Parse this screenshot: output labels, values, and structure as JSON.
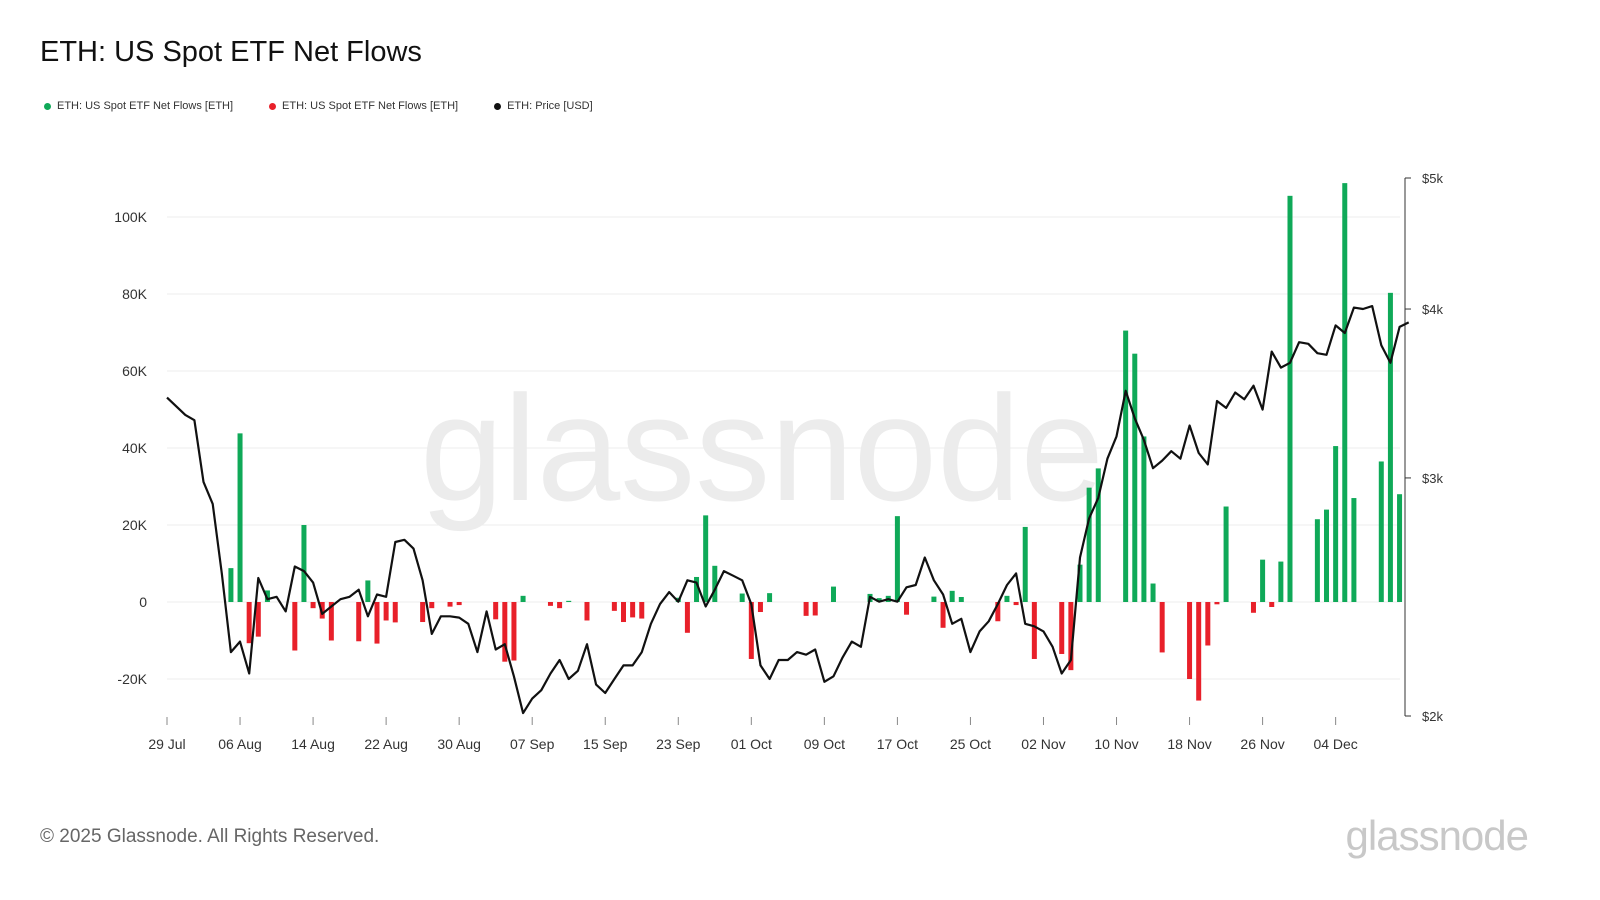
{
  "title": "ETH: US Spot ETF Net Flows",
  "legend": [
    {
      "label": "ETH: US Spot ETF Net Flows [ETH]",
      "color": "#0fa958"
    },
    {
      "label": "ETH: US Spot ETF Net Flows [ETH]",
      "color": "#e8202a"
    },
    {
      "label": "ETH: Price [USD]",
      "color": "#111111"
    }
  ],
  "footer": "© 2025 Glassnode. All Rights Reserved.",
  "brand": "glassnode",
  "watermark": "glassnode",
  "chart_data": {
    "type": "bar",
    "title": "ETH: US Spot ETF Net Flows",
    "x_ticks": [
      "29 Jul",
      "06 Aug",
      "14 Aug",
      "22 Aug",
      "30 Aug",
      "07 Sep",
      "15 Sep",
      "23 Sep",
      "01 Oct",
      "09 Oct",
      "17 Oct",
      "25 Oct",
      "02 Nov",
      "10 Nov",
      "18 Nov",
      "26 Nov",
      "04 Dec"
    ],
    "y_left_ticks": [
      "100K",
      "80K",
      "60K",
      "40K",
      "20K",
      "0",
      "-20K"
    ],
    "y_left_range": [
      -30000,
      110000
    ],
    "y_right_ticks": [
      "$5k",
      "$4k",
      "$3k",
      "$2k"
    ],
    "y_right_range": [
      2000,
      5000
    ],
    "y_right_scale": "log",
    "positive_color": "#0fa958",
    "negative_color": "#e8202a",
    "price_color": "#111111",
    "flows": [
      {
        "day": 7,
        "value": 8800
      },
      {
        "day": 8,
        "value": 43800
      },
      {
        "day": 9,
        "value": -10700
      },
      {
        "day": 10,
        "value": -9000
      },
      {
        "day": 11,
        "value": 3000
      },
      {
        "day": 14,
        "value": -12600
      },
      {
        "day": 15,
        "value": 20000
      },
      {
        "day": 16,
        "value": -1600
      },
      {
        "day": 17,
        "value": -4300
      },
      {
        "day": 18,
        "value": -10000
      },
      {
        "day": 21,
        "value": -10200
      },
      {
        "day": 22,
        "value": 5600
      },
      {
        "day": 23,
        "value": -10800
      },
      {
        "day": 24,
        "value": -4800
      },
      {
        "day": 25,
        "value": -5300
      },
      {
        "day": 28,
        "value": -5200
      },
      {
        "day": 29,
        "value": -1600
      },
      {
        "day": 31,
        "value": -1200
      },
      {
        "day": 32,
        "value": -800
      },
      {
        "day": 36,
        "value": -4500
      },
      {
        "day": 37,
        "value": -15500
      },
      {
        "day": 38,
        "value": -15200
      },
      {
        "day": 39,
        "value": 1600
      },
      {
        "day": 42,
        "value": -1000
      },
      {
        "day": 43,
        "value": -1600
      },
      {
        "day": 44,
        "value": 300
      },
      {
        "day": 46,
        "value": -4800
      },
      {
        "day": 49,
        "value": -2300
      },
      {
        "day": 50,
        "value": -5200
      },
      {
        "day": 51,
        "value": -4000
      },
      {
        "day": 52,
        "value": -4300
      },
      {
        "day": 56,
        "value": 1100
      },
      {
        "day": 57,
        "value": -8000
      },
      {
        "day": 58,
        "value": 6500
      },
      {
        "day": 59,
        "value": 22500
      },
      {
        "day": 60,
        "value": 9400
      },
      {
        "day": 63,
        "value": 2200
      },
      {
        "day": 64,
        "value": -14800
      },
      {
        "day": 65,
        "value": -2600
      },
      {
        "day": 66,
        "value": 2300
      },
      {
        "day": 70,
        "value": -3600
      },
      {
        "day": 71,
        "value": -3500
      },
      {
        "day": 73,
        "value": 4000
      },
      {
        "day": 77,
        "value": 2100
      },
      {
        "day": 78,
        "value": 1000
      },
      {
        "day": 79,
        "value": 1600
      },
      {
        "day": 80,
        "value": 22300
      },
      {
        "day": 81,
        "value": -3300
      },
      {
        "day": 84,
        "value": 1400
      },
      {
        "day": 85,
        "value": -6700
      },
      {
        "day": 86,
        "value": 2900
      },
      {
        "day": 87,
        "value": 1300
      },
      {
        "day": 91,
        "value": -5000
      },
      {
        "day": 92,
        "value": 1600
      },
      {
        "day": 93,
        "value": -800
      },
      {
        "day": 94,
        "value": 19500
      },
      {
        "day": 95,
        "value": -14800
      },
      {
        "day": 98,
        "value": -13500
      },
      {
        "day": 99,
        "value": -17700
      },
      {
        "day": 100,
        "value": 9700
      },
      {
        "day": 101,
        "value": 29700
      },
      {
        "day": 102,
        "value": 34700
      },
      {
        "day": 105,
        "value": 70500
      },
      {
        "day": 106,
        "value": 64500
      },
      {
        "day": 107,
        "value": 43000
      },
      {
        "day": 108,
        "value": 4800
      },
      {
        "day": 109,
        "value": -13100
      },
      {
        "day": 112,
        "value": -20000
      },
      {
        "day": 113,
        "value": -25600
      },
      {
        "day": 114,
        "value": -11300
      },
      {
        "day": 115,
        "value": -600
      },
      {
        "day": 116,
        "value": 24800
      },
      {
        "day": 119,
        "value": -2800
      },
      {
        "day": 120,
        "value": 11000
      },
      {
        "day": 121,
        "value": -1300
      },
      {
        "day": 122,
        "value": 10500
      },
      {
        "day": 123,
        "value": 105500
      },
      {
        "day": 126,
        "value": 21500
      },
      {
        "day": 127,
        "value": 24000
      },
      {
        "day": 128,
        "value": 40500
      },
      {
        "day": 129,
        "value": 108800
      },
      {
        "day": 130,
        "value": 27000
      },
      {
        "day": 133,
        "value": 36500
      },
      {
        "day": 134,
        "value": 80300
      },
      {
        "day": 135,
        "value": 28000
      }
    ],
    "price": [
      [
        0,
        3440
      ],
      [
        1,
        3390
      ],
      [
        2,
        3340
      ],
      [
        3,
        3310
      ],
      [
        4,
        2980
      ],
      [
        5,
        2870
      ],
      [
        6,
        2550
      ],
      [
        7,
        2230
      ],
      [
        8,
        2270
      ],
      [
        9,
        2150
      ],
      [
        10,
        2530
      ],
      [
        11,
        2440
      ],
      [
        12,
        2450
      ],
      [
        13,
        2390
      ],
      [
        14,
        2580
      ],
      [
        15,
        2560
      ],
      [
        16,
        2510
      ],
      [
        17,
        2380
      ],
      [
        18,
        2410
      ],
      [
        19,
        2440
      ],
      [
        20,
        2450
      ],
      [
        21,
        2480
      ],
      [
        22,
        2370
      ],
      [
        23,
        2460
      ],
      [
        24,
        2450
      ],
      [
        25,
        2690
      ],
      [
        26,
        2700
      ],
      [
        27,
        2660
      ],
      [
        28,
        2520
      ],
      [
        29,
        2300
      ],
      [
        30,
        2370
      ],
      [
        31,
        2370
      ],
      [
        32,
        2365
      ],
      [
        33,
        2340
      ],
      [
        34,
        2230
      ],
      [
        35,
        2390
      ],
      [
        36,
        2240
      ],
      [
        37,
        2260
      ],
      [
        38,
        2140
      ],
      [
        39,
        2010
      ],
      [
        40,
        2060
      ],
      [
        41,
        2090
      ],
      [
        42,
        2150
      ],
      [
        43,
        2200
      ],
      [
        44,
        2130
      ],
      [
        45,
        2160
      ],
      [
        46,
        2260
      ],
      [
        47,
        2110
      ],
      [
        48,
        2080
      ],
      [
        49,
        2130
      ],
      [
        50,
        2180
      ],
      [
        51,
        2180
      ],
      [
        52,
        2230
      ],
      [
        53,
        2340
      ],
      [
        54,
        2420
      ],
      [
        55,
        2470
      ],
      [
        56,
        2430
      ],
      [
        57,
        2520
      ],
      [
        58,
        2510
      ],
      [
        59,
        2410
      ],
      [
        60,
        2480
      ],
      [
        61,
        2560
      ],
      [
        62,
        2540
      ],
      [
        63,
        2520
      ],
      [
        64,
        2420
      ],
      [
        65,
        2180
      ],
      [
        66,
        2130
      ],
      [
        67,
        2200
      ],
      [
        68,
        2200
      ],
      [
        69,
        2230
      ],
      [
        70,
        2220
      ],
      [
        71,
        2240
      ],
      [
        72,
        2120
      ],
      [
        73,
        2140
      ],
      [
        74,
        2210
      ],
      [
        75,
        2270
      ],
      [
        76,
        2250
      ],
      [
        77,
        2450
      ],
      [
        78,
        2430
      ],
      [
        79,
        2440
      ],
      [
        80,
        2430
      ],
      [
        81,
        2490
      ],
      [
        82,
        2500
      ],
      [
        83,
        2620
      ],
      [
        84,
        2520
      ],
      [
        85,
        2460
      ],
      [
        86,
        2340
      ],
      [
        87,
        2360
      ],
      [
        88,
        2230
      ],
      [
        89,
        2310
      ],
      [
        90,
        2350
      ],
      [
        91,
        2420
      ],
      [
        92,
        2500
      ],
      [
        93,
        2550
      ],
      [
        94,
        2340
      ],
      [
        95,
        2330
      ],
      [
        96,
        2310
      ],
      [
        97,
        2250
      ],
      [
        98,
        2150
      ],
      [
        99,
        2200
      ],
      [
        100,
        2620
      ],
      [
        101,
        2800
      ],
      [
        102,
        2900
      ],
      [
        103,
        3100
      ],
      [
        104,
        3220
      ],
      [
        105,
        3480
      ],
      [
        106,
        3320
      ],
      [
        107,
        3200
      ],
      [
        108,
        3050
      ],
      [
        109,
        3090
      ],
      [
        110,
        3140
      ],
      [
        111,
        3100
      ],
      [
        112,
        3280
      ],
      [
        113,
        3130
      ],
      [
        114,
        3070
      ],
      [
        115,
        3420
      ],
      [
        116,
        3380
      ],
      [
        117,
        3470
      ],
      [
        118,
        3430
      ],
      [
        119,
        3510
      ],
      [
        120,
        3370
      ],
      [
        121,
        3720
      ],
      [
        122,
        3620
      ],
      [
        123,
        3650
      ],
      [
        124,
        3780
      ],
      [
        125,
        3770
      ],
      [
        126,
        3710
      ],
      [
        127,
        3700
      ],
      [
        128,
        3890
      ],
      [
        129,
        3840
      ],
      [
        130,
        4010
      ],
      [
        131,
        4000
      ],
      [
        132,
        4020
      ],
      [
        133,
        3760
      ],
      [
        134,
        3650
      ],
      [
        135,
        3880
      ],
      [
        136,
        3910
      ]
    ]
  }
}
